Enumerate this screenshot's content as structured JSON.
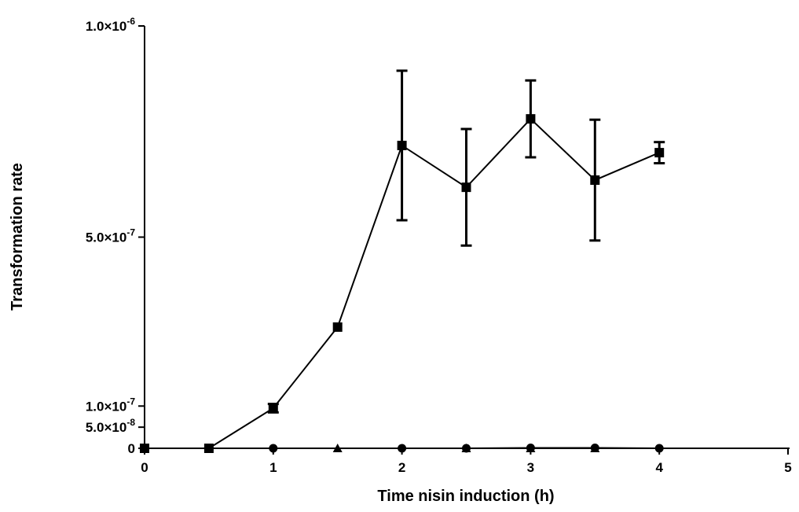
{
  "chart_data": {
    "type": "line",
    "title": "",
    "xlabel": "Time nisin induction (h)",
    "ylabel": "Transformation rate",
    "xlim": [
      0,
      5
    ],
    "ylim": [
      0,
      1e-06
    ],
    "x_ticks": [
      0,
      1,
      2,
      3,
      4,
      5
    ],
    "x_tick_labels": [
      "0",
      "1",
      "2",
      "3",
      "4",
      "5"
    ],
    "y_ticks": [
      {
        "value": 0,
        "mantissa": "0",
        "exponent": ""
      },
      {
        "value": 5e-08,
        "mantissa": "5.0×10",
        "exponent": "-8"
      },
      {
        "value": 1e-07,
        "mantissa": "1.0×10",
        "exponent": "-7"
      },
      {
        "value": 5e-07,
        "mantissa": "5.0×10",
        "exponent": "-7"
      },
      {
        "value": 1e-06,
        "mantissa": "1.0×10",
        "exponent": "-6"
      }
    ],
    "grid": false,
    "legend": "none",
    "series": [
      {
        "marker": "square",
        "color": "#000000",
        "x": [
          0,
          0.5,
          1,
          1.5,
          2,
          2.5,
          3,
          3.5,
          4
        ],
        "y": [
          0,
          0,
          9.5e-08,
          2.87e-07,
          7.17e-07,
          6.18e-07,
          7.8e-07,
          6.35e-07,
          7e-07
        ],
        "err": [
          0,
          0,
          1e-08,
          0,
          1.77e-07,
          1.38e-07,
          9.1e-08,
          1.43e-07,
          2.5e-08
        ]
      },
      {
        "marker": "circle",
        "color": "#000000",
        "x": [
          1,
          2,
          2.5,
          3,
          3.5,
          4
        ],
        "y": [
          0,
          0,
          0,
          1e-09,
          1e-09,
          0
        ],
        "err": [
          0,
          0,
          0,
          0,
          0,
          0
        ]
      },
      {
        "marker": "triangle",
        "color": "#000000",
        "x": [
          1.5,
          2.5,
          3,
          3.5
        ],
        "y": [
          0,
          0,
          0,
          0
        ],
        "err": [
          0,
          0,
          0,
          0
        ]
      }
    ]
  }
}
